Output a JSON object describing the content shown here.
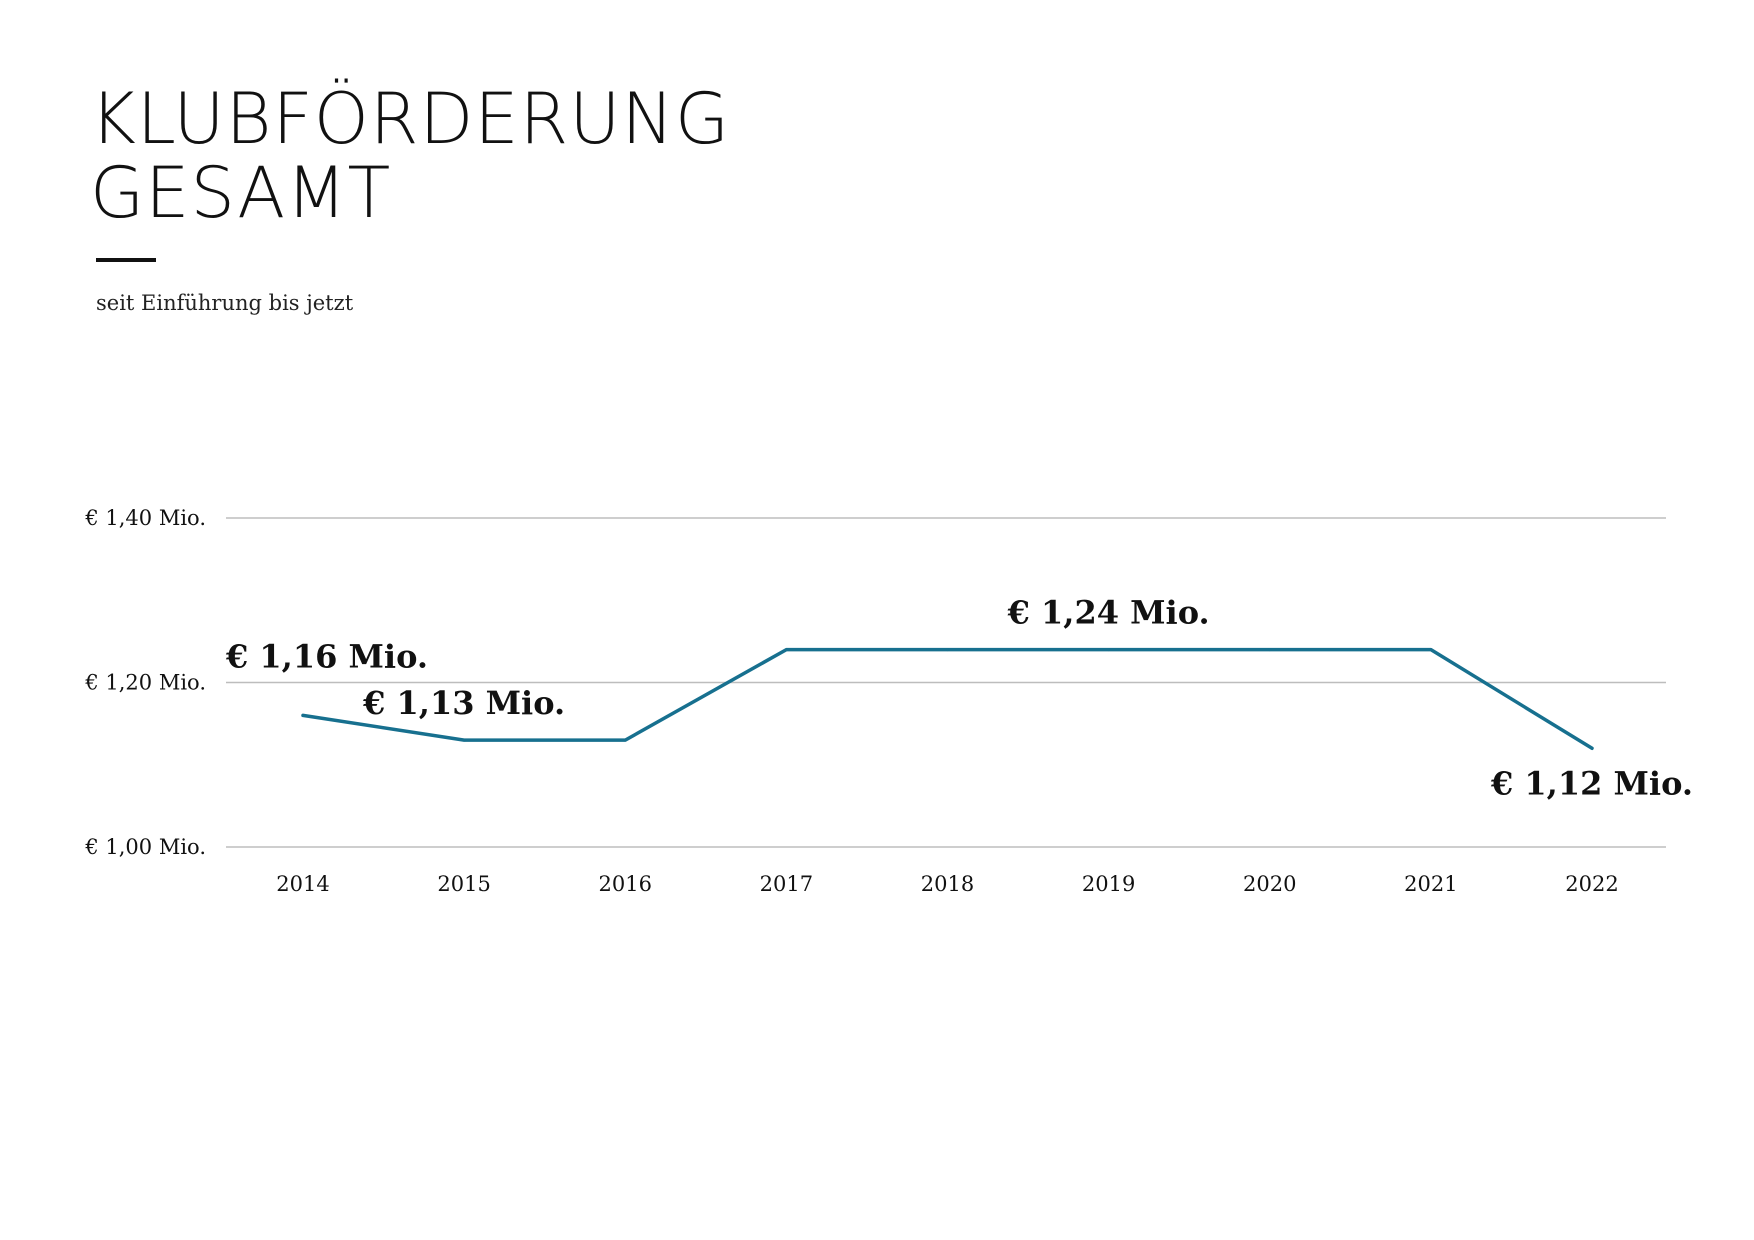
{
  "header": {
    "title_line1": "KLUBFÖRDERUNG",
    "title_line2": "GESAMT",
    "subtitle": "seit Einführung bis jetzt"
  },
  "colors": {
    "line": "#17708f",
    "grid": "#bdbdbd",
    "text": "#111111"
  },
  "chart_data": {
    "type": "line",
    "title": "KLUBFÖRDERUNG GESAMT",
    "subtitle": "seit Einführung bis jetzt",
    "x": [
      "2014",
      "2015",
      "2016",
      "2017",
      "2018",
      "2019",
      "2020",
      "2021",
      "2022"
    ],
    "series": [
      {
        "values": [
          1.16,
          1.13,
          1.13,
          1.24,
          1.24,
          1.24,
          1.24,
          1.24,
          1.12
        ]
      }
    ],
    "ylim": [
      1.0,
      1.4
    ],
    "yticks": [
      {
        "value": 1.0,
        "label": "€ 1,00 Mio."
      },
      {
        "value": 1.2,
        "label": "€ 1,20 Mio."
      },
      {
        "value": 1.4,
        "label": "€ 1,40 Mio."
      }
    ],
    "annotations": [
      {
        "text": "€ 1,16 Mio.",
        "x": "2014",
        "y": 1.16,
        "placement": "above-left"
      },
      {
        "text": "€ 1,13 Mio.",
        "x": "2015",
        "y": 1.13,
        "placement": "above"
      },
      {
        "text": "€ 1,24 Mio.",
        "x": "2019",
        "y": 1.24,
        "placement": "above"
      },
      {
        "text": "€ 1,12 Mio.",
        "x": "2022",
        "y": 1.12,
        "placement": "below"
      }
    ],
    "grid": true,
    "legend": "none"
  }
}
